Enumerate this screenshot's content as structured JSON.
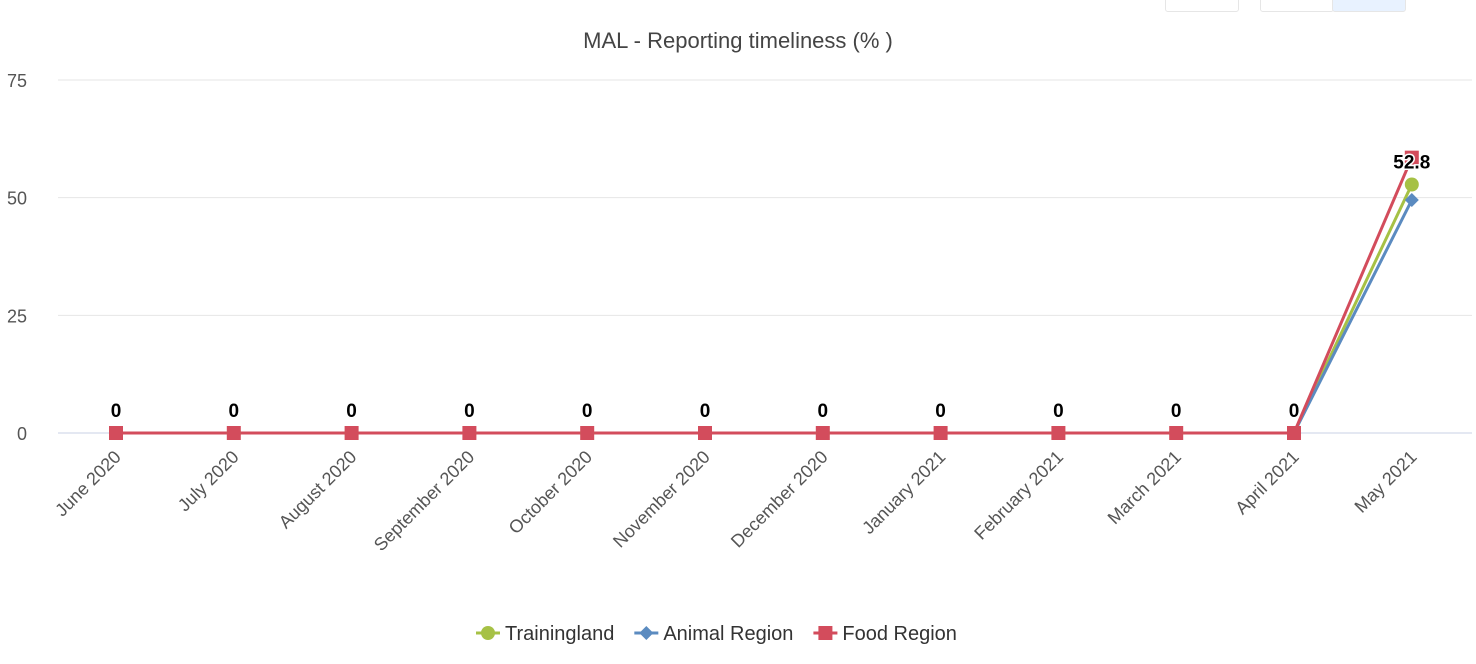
{
  "chart_data": {
    "type": "line",
    "title": "MAL - Reporting timeliness (% )",
    "xlabel": "",
    "ylabel": "",
    "ylim": [
      0,
      75
    ],
    "yticks": [
      0,
      25,
      50,
      75
    ],
    "grid": true,
    "legend_position": "bottom",
    "categories": [
      "June 2020",
      "July 2020",
      "August 2020",
      "September 2020",
      "October 2020",
      "November 2020",
      "December 2020",
      "January 2021",
      "February 2021",
      "March 2021",
      "April 2021",
      "May 2021"
    ],
    "series": [
      {
        "name": "Trainingland",
        "color": "#a6c145",
        "marker": "circle",
        "values": [
          0,
          0,
          0,
          0,
          0,
          0,
          0,
          0,
          0,
          0,
          0,
          52.8
        ]
      },
      {
        "name": "Animal Region",
        "color": "#5b8bc0",
        "marker": "diamond",
        "values": [
          0,
          0,
          0,
          0,
          0,
          0,
          0,
          0,
          0,
          0,
          0,
          49.5
        ]
      },
      {
        "name": "Food Region",
        "color": "#d34c5c",
        "marker": "square",
        "values": [
          0,
          0,
          0,
          0,
          0,
          0,
          0,
          0,
          0,
          0,
          0,
          58.5
        ]
      }
    ],
    "data_labels": [
      "0",
      "0",
      "0",
      "0",
      "0",
      "0",
      "0",
      "0",
      "0",
      "0",
      "0",
      "52.8"
    ]
  }
}
